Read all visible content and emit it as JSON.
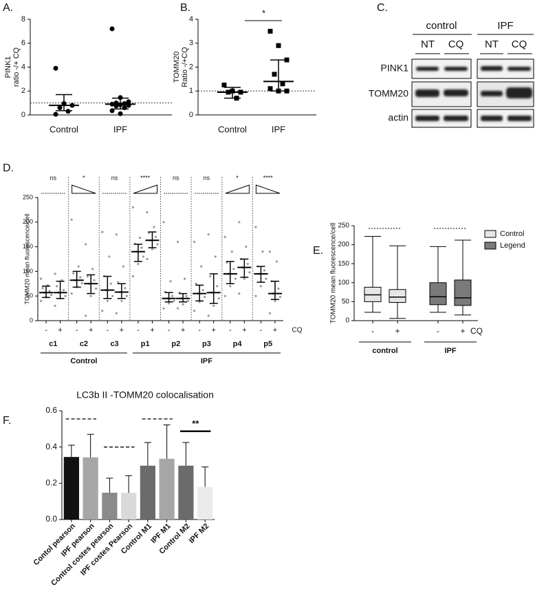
{
  "chart_data": [
    {
      "type": "dotplot",
      "label": "A.",
      "ylabel": [
        "PINK1",
        "ratio -/+ CQ"
      ],
      "marker": "circle",
      "categories": [
        "Control",
        "IPF"
      ],
      "groups": [
        {
          "points": [
            3.9,
            0.95,
            0.8,
            0.6,
            0.3,
            0.05
          ],
          "center": 0.8,
          "lower": 0.35,
          "upper": 1.7
        },
        {
          "points": [
            7.2,
            1.45,
            1.1,
            1.0,
            0.95,
            0.9,
            0.85,
            0.8,
            0.75,
            0.6,
            0.35,
            0.1
          ],
          "center": 0.9,
          "lower": 0.5,
          "upper": 1.4
        }
      ],
      "reference": 1,
      "ylim": [
        0,
        8
      ],
      "yticks": [
        0,
        2,
        4,
        6,
        8
      ]
    },
    {
      "type": "dotplot",
      "label": "B.",
      "ylabel": [
        "TOMM20",
        "Ratio -/+CQ"
      ],
      "marker": "square",
      "categories": [
        "Control",
        "IPF"
      ],
      "groups": [
        {
          "points": [
            1.25,
            1.0,
            0.95,
            0.95,
            0.7
          ],
          "center": 0.95,
          "lower": 0.7,
          "upper": 1.15
        },
        {
          "points": [
            3.5,
            2.9,
            2.3,
            1.7,
            1.3,
            1.1,
            1.0,
            1.0
          ],
          "center": 1.4,
          "lower": 1.0,
          "upper": 2.3
        }
      ],
      "significance": "*",
      "reference": 1,
      "ylim": [
        0,
        4
      ],
      "yticks": [
        0,
        1,
        2,
        3,
        4
      ]
    },
    {
      "type": "grouped_dotplot",
      "label": "D.",
      "ylabel": "TOMM20 mean fluorescence/cell",
      "conditions": [
        "-",
        "+"
      ],
      "condition_label": "CQ",
      "supergroups": [
        {
          "name": "Control",
          "groups": [
            {
              "name": "c1",
              "significance": "ns",
              "trend": "flat",
              "sets": [
                {
                  "points": [
                    40,
                    48,
                    52,
                    57,
                    60,
                    66,
                    72,
                    85
                  ],
                  "center": 57,
                  "lower": 47,
                  "upper": 70
                },
                {
                  "points": [
                    30,
                    45,
                    50,
                    57,
                    62,
                    70,
                    82,
                    95
                  ],
                  "center": 57,
                  "lower": 45,
                  "upper": 80
                }
              ]
            },
            {
              "name": "c2",
              "significance": "*",
              "trend": "down",
              "sets": [
                {
                  "points": [
                    55,
                    68,
                    76,
                    82,
                    88,
                    96,
                    110,
                    205
                  ],
                  "center": 82,
                  "lower": 68,
                  "upper": 100
                },
                {
                  "points": [
                    10,
                    50,
                    65,
                    75,
                    82,
                    90,
                    105,
                    155
                  ],
                  "center": 75,
                  "lower": 55,
                  "upper": 93
                }
              ]
            },
            {
              "name": "c3",
              "significance": "ns",
              "trend": "flat",
              "sets": [
                {
                  "points": [
                    20,
                    40,
                    50,
                    62,
                    75,
                    90,
                    130,
                    180
                  ],
                  "center": 62,
                  "lower": 45,
                  "upper": 90
                },
                {
                  "points": [
                    15,
                    40,
                    50,
                    58,
                    66,
                    78,
                    110,
                    175
                  ],
                  "center": 58,
                  "lower": 45,
                  "upper": 75
                }
              ]
            }
          ]
        },
        {
          "name": "IPF",
          "groups": [
            {
              "name": "p1",
              "significance": "****",
              "trend": "up",
              "sets": [
                {
                  "points": [
                    90,
                    115,
                    130,
                    140,
                    148,
                    156,
                    168,
                    230
                  ],
                  "center": 140,
                  "lower": 120,
                  "upper": 155
                },
                {
                  "points": [
                    125,
                    145,
                    155,
                    163,
                    170,
                    178,
                    190,
                    220
                  ],
                  "center": 163,
                  "lower": 148,
                  "upper": 180
                }
              ]
            },
            {
              "name": "p2",
              "significance": "ns",
              "trend": "flat",
              "sets": [
                {
                  "points": [
                    25,
                    35,
                    40,
                    45,
                    50,
                    58,
                    80,
                    200
                  ],
                  "center": 45,
                  "lower": 38,
                  "upper": 57
                },
                {
                  "points": [
                    25,
                    33,
                    40,
                    45,
                    50,
                    57,
                    85,
                    160
                  ],
                  "center": 45,
                  "lower": 38,
                  "upper": 55
                }
              ]
            },
            {
              "name": "p3",
              "significance": "ns",
              "trend": "flat",
              "sets": [
                {
                  "points": [
                    20,
                    38,
                    48,
                    55,
                    62,
                    75,
                    110,
                    160
                  ],
                  "center": 55,
                  "lower": 40,
                  "upper": 72
                },
                {
                  "points": [
                    10,
                    30,
                    45,
                    57,
                    70,
                    90,
                    130,
                    175
                  ],
                  "center": 57,
                  "lower": 35,
                  "upper": 95
                }
              ]
            },
            {
              "name": "p4",
              "significance": "*",
              "trend": "up",
              "sets": [
                {
                  "points": [
                    50,
                    70,
                    85,
                    95,
                    105,
                    118,
                    140,
                    170
                  ],
                  "center": 95,
                  "lower": 75,
                  "upper": 120
                },
                {
                  "points": [
                    55,
                    85,
                    98,
                    108,
                    115,
                    125,
                    150,
                    200
                  ],
                  "center": 108,
                  "lower": 88,
                  "upper": 125
                }
              ]
            },
            {
              "name": "p5",
              "significance": "****",
              "trend": "down",
              "sets": [
                {
                  "points": [
                    50,
                    70,
                    85,
                    95,
                    102,
                    110,
                    140,
                    190
                  ],
                  "center": 95,
                  "lower": 78,
                  "upper": 110
                },
                {
                  "points": [
                    15,
                    40,
                    48,
                    55,
                    65,
                    80,
                    120,
                    140
                  ],
                  "center": 55,
                  "lower": 43,
                  "upper": 80
                }
              ]
            }
          ]
        }
      ],
      "ylim": [
        0,
        250
      ],
      "yticks": [
        0,
        50,
        100,
        150,
        200,
        250
      ]
    },
    {
      "type": "box",
      "label": "E.",
      "ylabel": "TOMM20 mean fluorescence/cell",
      "groups": [
        "control",
        "IPF"
      ],
      "conditions": [
        "-",
        "+"
      ],
      "condition_label": "CQ",
      "series": [
        {
          "name": "Control",
          "color": "#e6e6e6",
          "boxes": [
            {
              "min": 22,
              "q1": 50,
              "median": 68,
              "q3": 88,
              "max": 222
            },
            {
              "min": 6,
              "q1": 48,
              "median": 62,
              "q3": 82,
              "max": 197
            }
          ]
        },
        {
          "name": "Legend",
          "color": "#7a7a7a",
          "boxes": [
            {
              "min": 22,
              "q1": 42,
              "median": 63,
              "q3": 100,
              "max": 195
            },
            {
              "min": 15,
              "q1": 40,
              "median": 60,
              "q3": 107,
              "max": 212
            }
          ]
        }
      ],
      "ylim": [
        0,
        250
      ],
      "yticks": [
        0,
        50,
        100,
        150,
        200,
        250
      ]
    },
    {
      "type": "bar",
      "label": "F.",
      "title": "LC3b II -TOMM20 colocalisation",
      "categories": [
        "Contol pearson",
        "IPF pearson",
        "Control costes pearson",
        "IPF costes Pearson",
        "Control M1",
        "IPF M1",
        "Control M2",
        "IPF M2"
      ],
      "values": [
        0.345,
        0.343,
        0.148,
        0.147,
        0.297,
        0.335,
        0.297,
        0.18
      ],
      "errors": [
        0.065,
        0.127,
        0.08,
        0.095,
        0.128,
        0.187,
        0.128,
        0.11
      ],
      "colors": [
        "#111111",
        "#a6a6a6",
        "#8a8a8a",
        "#d9d9d9",
        "#6b6b6b",
        "#a6a6a6",
        "#6b6b6b",
        "#ebebeb"
      ],
      "significance": "**",
      "ylim": [
        0,
        0.6
      ],
      "yticks": [
        {
          "value": 0,
          "label": "0.0"
        },
        0.2,
        0.4,
        0.6
      ]
    }
  ],
  "blot": {
    "label": "C.",
    "groups": [
      "control",
      "IPF"
    ],
    "lanes": [
      "NT",
      "CQ",
      "NT",
      "CQ"
    ],
    "rows": [
      "PINK1",
      "TOMM20",
      "actin"
    ]
  }
}
